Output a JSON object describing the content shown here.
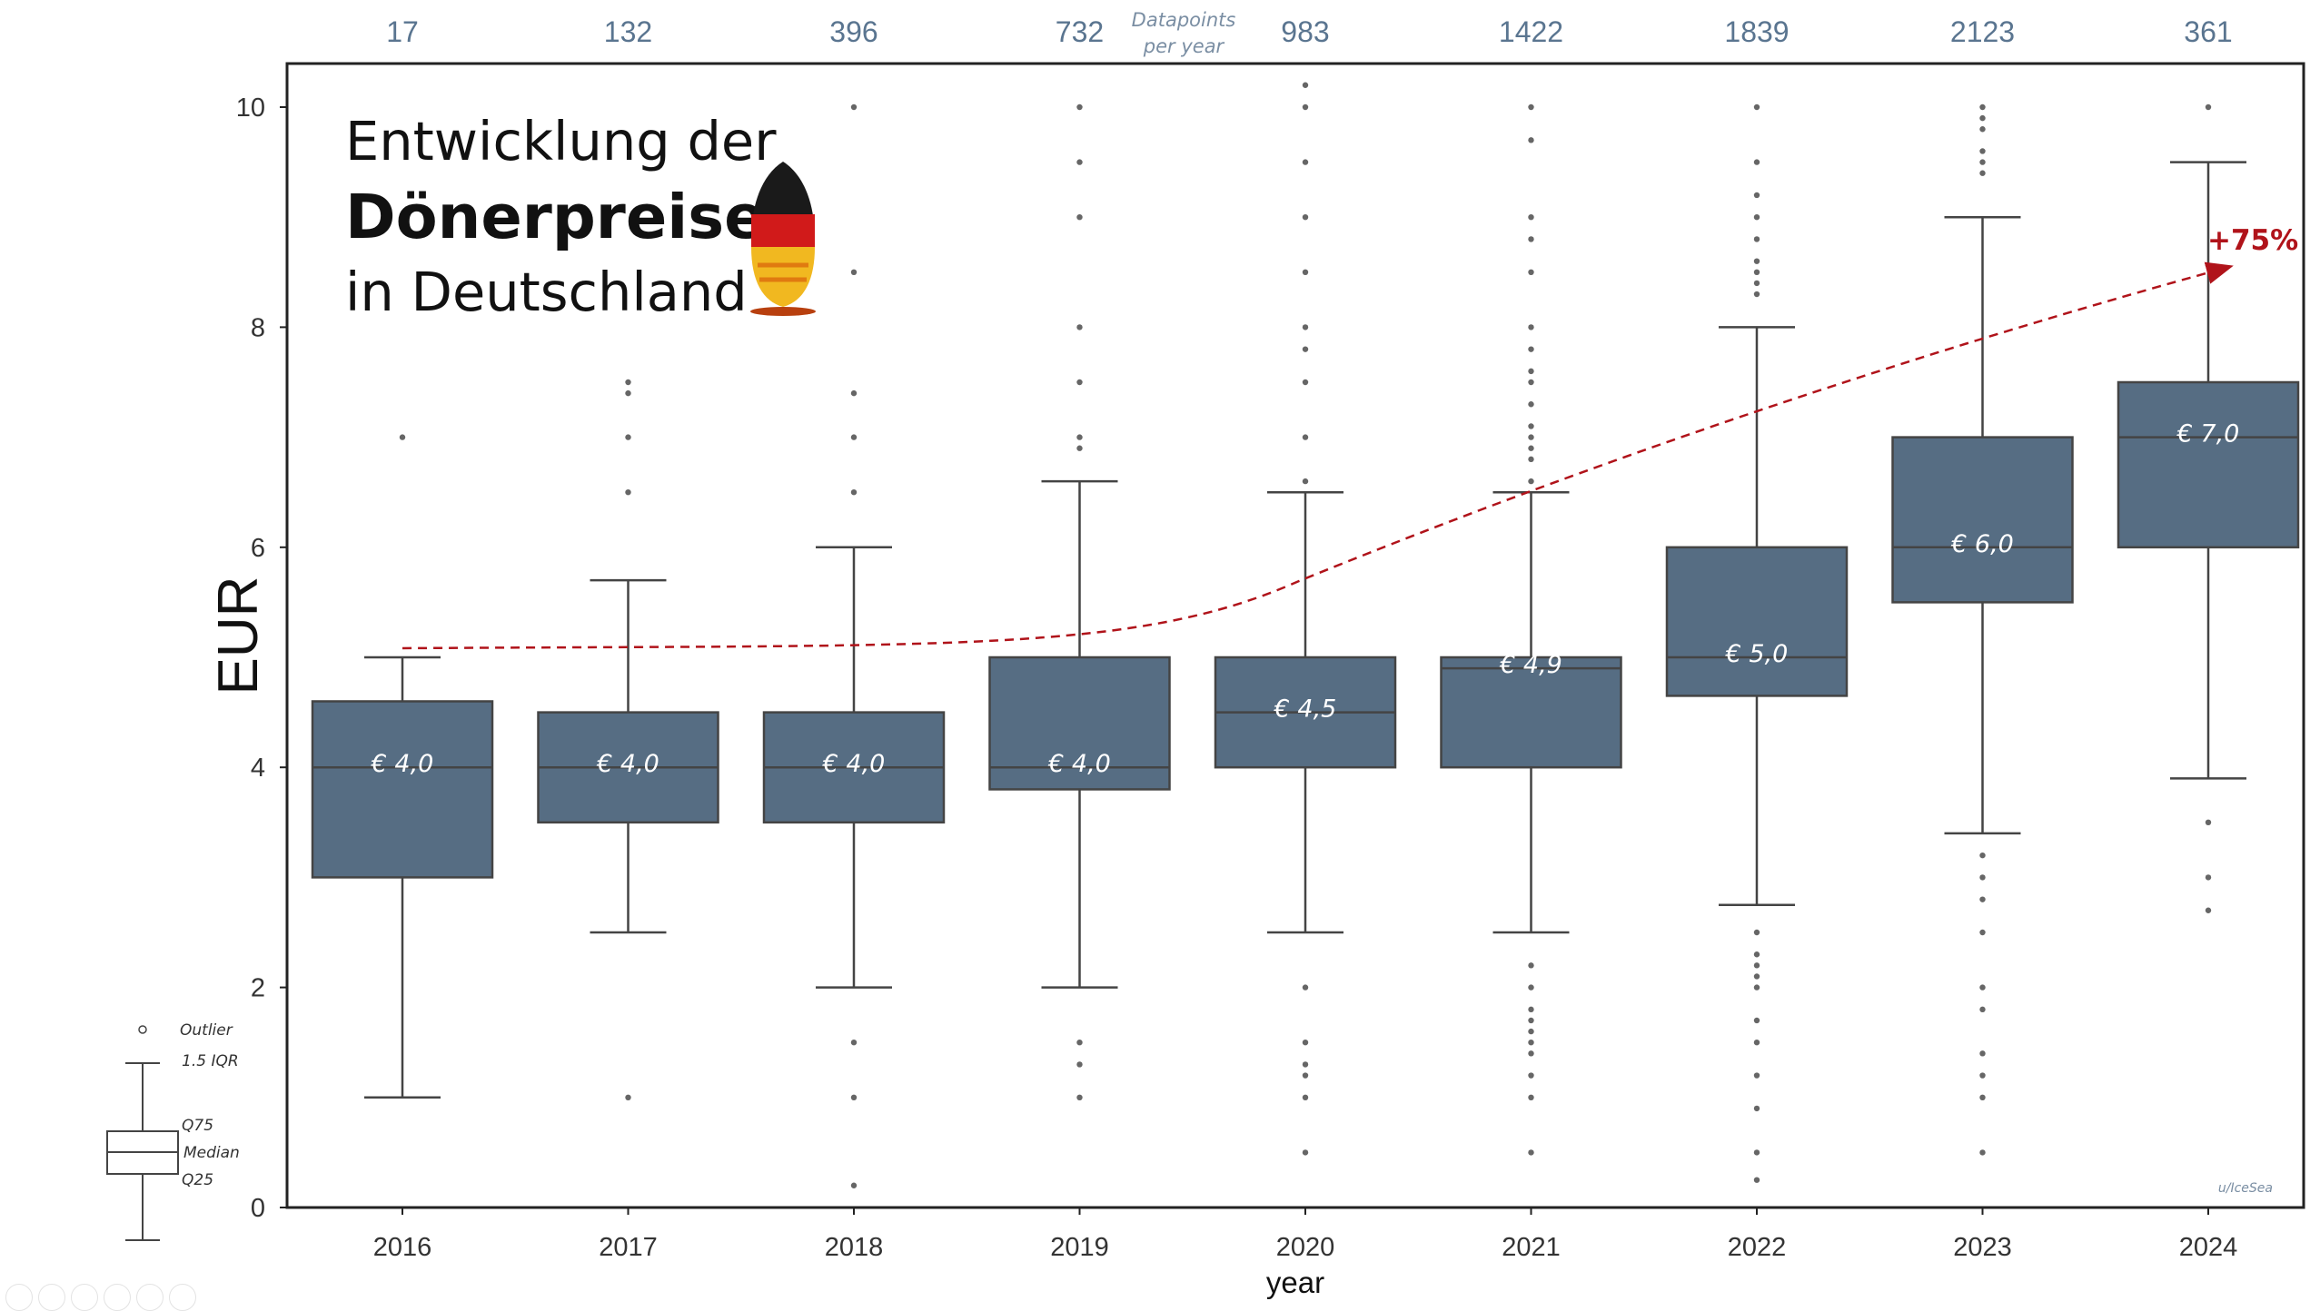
{
  "chart_data": {
    "type": "box",
    "title": [
      "Entwicklung der",
      "Dönerpreise",
      "in Deutschland"
    ],
    "xlabel": "year",
    "ylabel": "EUR",
    "ylim": [
      0,
      10.5
    ],
    "yticks": [
      0,
      2,
      4,
      6,
      8,
      10
    ],
    "categories": [
      "2016",
      "2017",
      "2018",
      "2019",
      "2020",
      "2021",
      "2022",
      "2023",
      "2024"
    ],
    "datapoints_label": [
      "Datapoints",
      "per year"
    ],
    "counts": [
      17,
      132,
      396,
      732,
      983,
      1422,
      1839,
      2123,
      361
    ],
    "boxes": [
      {
        "year": "2016",
        "q1": 3.0,
        "median": 4.0,
        "q3": 4.6,
        "whisker_low": 1.0,
        "whisker_high": 5.0,
        "median_label": "€ 4,0",
        "outliers": [
          7.0
        ]
      },
      {
        "year": "2017",
        "q1": 3.5,
        "median": 4.0,
        "q3": 4.5,
        "whisker_low": 2.5,
        "whisker_high": 5.7,
        "median_label": "€ 4,0",
        "outliers": [
          1.0,
          6.5,
          7.0,
          7.4,
          7.5
        ]
      },
      {
        "year": "2018",
        "q1": 3.5,
        "median": 4.0,
        "q3": 4.5,
        "whisker_low": 2.0,
        "whisker_high": 6.0,
        "median_label": "€ 4,0",
        "outliers": [
          0.2,
          1.0,
          1.5,
          6.5,
          7.0,
          7.4,
          8.5,
          10.0
        ]
      },
      {
        "year": "2019",
        "q1": 3.8,
        "median": 4.0,
        "q3": 5.0,
        "whisker_low": 2.0,
        "whisker_high": 6.6,
        "median_label": "€ 4,0",
        "outliers": [
          1.0,
          1.3,
          1.5,
          6.9,
          7.0,
          7.5,
          8.0,
          9.0,
          9.5,
          10.0
        ]
      },
      {
        "year": "2020",
        "q1": 4.0,
        "median": 4.5,
        "q3": 5.0,
        "whisker_low": 2.5,
        "whisker_high": 6.5,
        "median_label": "€ 4,5",
        "outliers": [
          0.5,
          1.0,
          1.2,
          1.3,
          1.5,
          2.0,
          6.6,
          7.0,
          7.5,
          7.8,
          8.0,
          8.5,
          9.0,
          9.5,
          10.0,
          10.2
        ]
      },
      {
        "year": "2021",
        "q1": 4.0,
        "median": 4.9,
        "q3": 5.0,
        "whisker_low": 2.5,
        "whisker_high": 6.5,
        "median_label": "€ 4,9",
        "outliers": [
          0.5,
          1.0,
          1.2,
          1.4,
          1.5,
          1.6,
          1.7,
          1.8,
          2.0,
          2.2,
          6.6,
          6.8,
          6.9,
          7.0,
          7.1,
          7.3,
          7.5,
          7.6,
          7.8,
          8.0,
          8.5,
          8.8,
          9.0,
          9.7,
          10.0
        ]
      },
      {
        "year": "2022",
        "q1": 4.65,
        "median": 5.0,
        "q3": 6.0,
        "whisker_low": 2.75,
        "whisker_high": 8.0,
        "median_label": "€ 5,0",
        "outliers": [
          0.25,
          0.5,
          0.9,
          1.2,
          1.5,
          1.7,
          2.0,
          2.1,
          2.2,
          2.3,
          2.5,
          8.3,
          8.4,
          8.5,
          8.6,
          8.8,
          9.0,
          9.2,
          9.5,
          10.0
        ]
      },
      {
        "year": "2023",
        "q1": 5.5,
        "median": 6.0,
        "q3": 7.0,
        "whisker_low": 3.4,
        "whisker_high": 9.0,
        "median_label": "€ 6,0",
        "outliers": [
          0.5,
          1.0,
          1.2,
          1.4,
          1.8,
          2.0,
          2.5,
          2.8,
          3.0,
          3.2,
          9.4,
          9.5,
          9.6,
          9.8,
          9.9,
          10.0
        ]
      },
      {
        "year": "2024",
        "q1": 6.0,
        "median": 7.0,
        "q3": 7.5,
        "whisker_low": 3.9,
        "whisker_high": 9.5,
        "median_label": "€ 7,0",
        "outliers": [
          2.7,
          3.0,
          3.5,
          10.0
        ]
      }
    ],
    "trend_annotation": "+75%",
    "legend": {
      "outlier": "Outlier",
      "whisker": "1.5 IQR",
      "q75": "Q75",
      "median": "Median",
      "q25": "Q25"
    },
    "credit": "u/IceSea",
    "grid": false,
    "colors": {
      "box": "#566d83",
      "line": "#444444",
      "trend": "#b0131a",
      "count": "#5a7590"
    }
  }
}
